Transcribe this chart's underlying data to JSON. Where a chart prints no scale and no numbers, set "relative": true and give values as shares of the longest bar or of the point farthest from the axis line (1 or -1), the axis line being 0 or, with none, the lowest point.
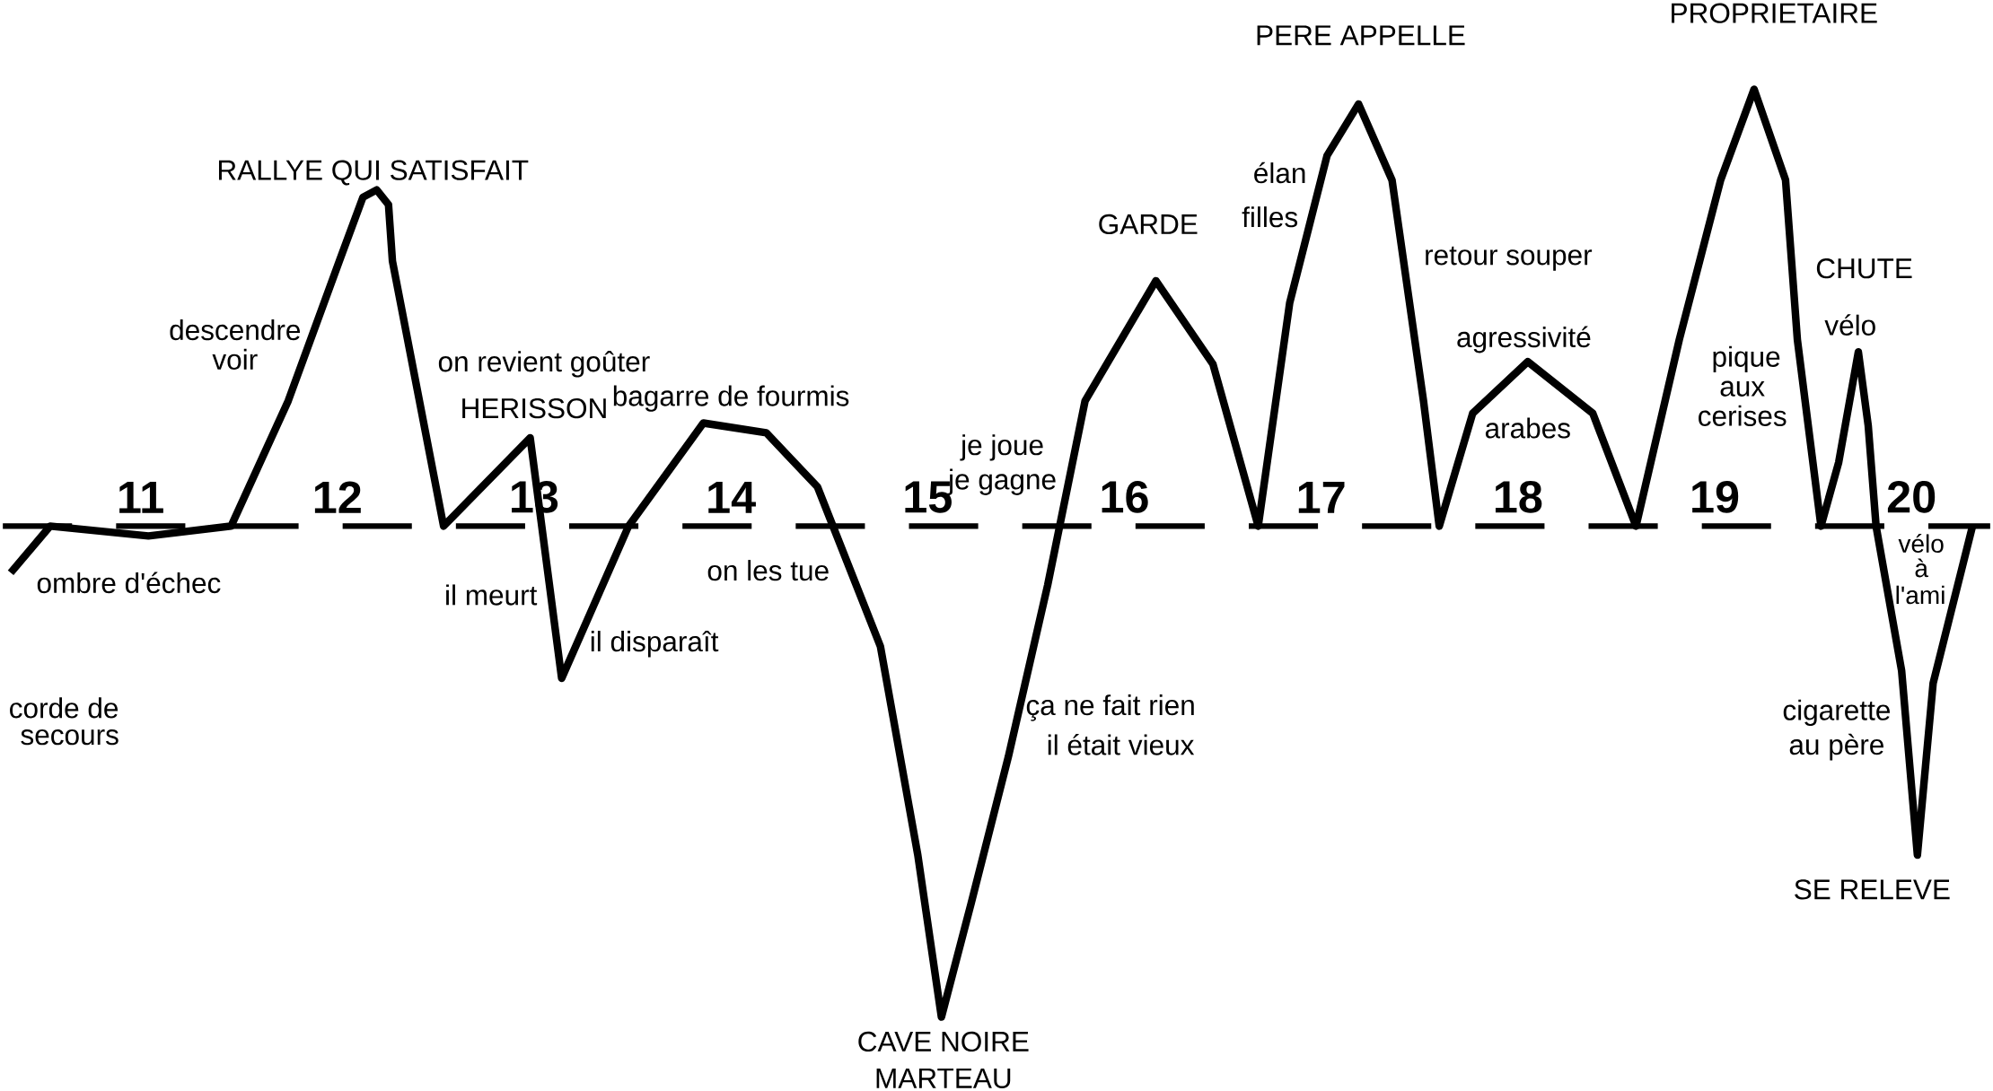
{
  "chart_data": {
    "type": "line",
    "relative": true,
    "color": "#000000",
    "line_style": "solid",
    "marker": "none",
    "x": [
      10.34,
      10.54,
      11.04,
      11.46,
      11.75,
      12.01,
      12.13,
      12.2,
      12.26,
      12.28,
      12.54,
      12.98,
      13.14,
      13.48,
      13.86,
      14.18,
      14.44,
      14.76,
      14.95,
      15.07,
      15.22,
      15.41,
      15.61,
      15.8,
      16.16,
      16.45,
      16.68,
      16.84,
      17.03,
      17.19,
      17.36,
      17.52,
      17.6,
      17.77,
      18.05,
      18.38,
      18.6,
      18.82,
      19.03,
      19.2,
      19.36,
      19.42,
      19.54,
      19.63,
      19.73,
      19.78,
      19.82,
      19.95,
      20.03,
      20.11,
      20.31
    ],
    "values": [
      -0.095,
      0,
      -0.02,
      0,
      0.255,
      0.54,
      0.67,
      0.685,
      0.655,
      0.54,
      0,
      0.18,
      -0.31,
      0,
      0.21,
      0.19,
      0.08,
      -0.245,
      -0.67,
      -1.0,
      -0.77,
      -0.47,
      -0.12,
      0.255,
      0.5,
      0.33,
      0,
      0.455,
      0.755,
      0.86,
      0.705,
      0.255,
      0,
      0.23,
      0.335,
      0.23,
      0,
      0.38,
      0.705,
      0.89,
      0.705,
      0.38,
      0,
      0.13,
      0.355,
      0.205,
      0,
      -0.295,
      -0.67,
      -0.32,
      0
    ],
    "xlim": [
      10.3,
      20.4
    ],
    "xticks": [
      11,
      12,
      13,
      14,
      15,
      16,
      17,
      18,
      19,
      20
    ],
    "ref_lines": [
      {
        "axis": "y",
        "value": 0,
        "line_style": "dashed"
      }
    ],
    "annotations": [
      "RALLYE QUI SATISFAIT",
      "descendre",
      "voir",
      "on revient goûter",
      "HERISSON",
      "bagarre de fourmis",
      "je joue",
      "je gagne",
      "GARDE",
      "élan",
      "filles",
      "PERE APPELLE",
      "retour souper",
      "agressivité",
      "arabes",
      "PROPRIETAIRE",
      "CHUTE",
      "vélo",
      "pique",
      "aux",
      "cerises",
      "ombre d'échec",
      "corde de",
      "secours",
      "il meurt",
      "il disparaît",
      "on les tue",
      "ça ne fait rien",
      "il était vieux",
      "CAVE NOIRE",
      "MARTEAU",
      "vélo",
      "à",
      "l'ami",
      "cigarette",
      "au père",
      "SE RELEVE"
    ]
  }
}
